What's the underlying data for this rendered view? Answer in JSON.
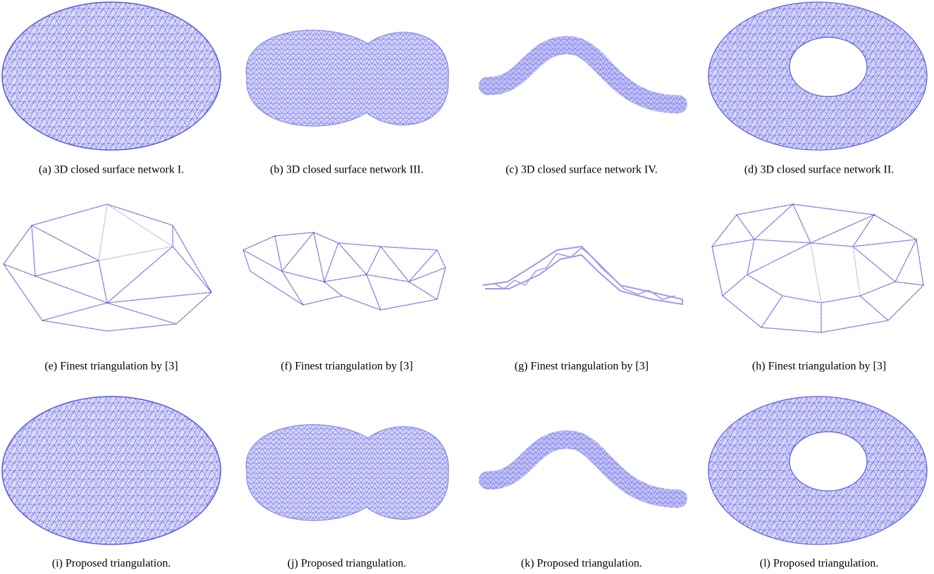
{
  "panels": [
    {
      "caption": "(a) 3D closed surface network I."
    },
    {
      "caption": "(b) 3D closed surface network III."
    },
    {
      "caption": "(c) 3D closed surface network IV."
    },
    {
      "caption": "(d) 3D closed surface network II."
    },
    {
      "caption": "(e) Finest triangulation by [3]"
    },
    {
      "caption": "(f) Finest triangulation by [3]"
    },
    {
      "caption": "(g) Finest triangulation by [3]"
    },
    {
      "caption": "(h) Finest triangulation by [3]"
    },
    {
      "caption": "(i) Proposed triangulation."
    },
    {
      "caption": "(j) Proposed triangulation."
    },
    {
      "caption": "(k) Proposed triangulation."
    },
    {
      "caption": "(l) Proposed triangulation."
    }
  ]
}
